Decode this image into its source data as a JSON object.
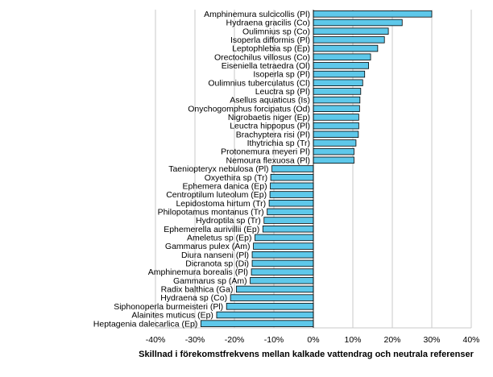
{
  "chart_data": {
    "type": "bar",
    "orientation": "horizontal",
    "xlabel": "Skillnad i förekomstfrekvens mellan kalkade vattendrag och neutrala referenser",
    "xlim": [
      -0.4,
      0.4
    ],
    "xticks": [
      -0.4,
      -0.3,
      -0.2,
      -0.1,
      0,
      0.1,
      0.2,
      0.3,
      0.4
    ],
    "xtick_labels": [
      "-40%",
      "-30%",
      "-20%",
      "-10%",
      "0%",
      "10%",
      "20%",
      "30%",
      "40%"
    ],
    "grid": "vertical gridlines",
    "bar_color": "#5ec8ea",
    "bar_edge_color": "#000000",
    "categories": [
      "Amphinemura sulcicollis (Pl)",
      "Hydraena gracilis (Co)",
      "Oulimnius sp (Co)",
      "Isoperla difformis (Pl)",
      "Leptophlebia sp (Ep)",
      "Orectochilus villosus (Co)",
      "Eiseniella tetraedra (Ol)",
      "Isoperla sp (Pl)",
      "Oulimnius tuberculatus (Cl)",
      "Leuctra sp (Pl)",
      "Asellus aquaticus (Is)",
      "Onychogomphus forcipatus (Od)",
      "Nigrobaetis niger (Ep)",
      "Leuctra hippopus (Pl)",
      "Brachyptera risi (Pl)",
      "Ithytrichia sp (Tr)",
      "Protonemura meyeri Pl)",
      "Nemoura flexuosa (Pl)",
      "Taeniopteryx nebulosa (Pl)",
      "Oxyethira sp (Tr)",
      "Ephemera danica (Ep)",
      "Centroptilum luteolum (Ep)",
      "Lepidostoma hirtum (Tr)",
      "Philopotamus montanus (Tr)",
      "Hydroptila sp (Tr)",
      "Ephemerella aurivillii (Ep)",
      "Ameletus sp (Ep)",
      "Gammarus pulex (Am)",
      "Diura nanseni (Pl)",
      "Dicranota sp (Di)",
      "Amphinemura borealis (Pl)",
      "Gammarus sp (Am)",
      "Radix balthica (Ga)",
      "Hydraena sp (Co)",
      "Siphonoperla burmeisteri (Pl)",
      "Alainites muticus (Ep)",
      "Heptagenia dalecarlica (Ep)"
    ],
    "values": [
      0.3,
      0.225,
      0.19,
      0.18,
      0.163,
      0.145,
      0.14,
      0.13,
      0.125,
      0.12,
      0.118,
      0.117,
      0.115,
      0.115,
      0.114,
      0.108,
      0.103,
      0.103,
      -0.105,
      -0.108,
      -0.109,
      -0.11,
      -0.112,
      -0.117,
      -0.125,
      -0.128,
      -0.148,
      -0.152,
      -0.155,
      -0.155,
      -0.157,
      -0.16,
      -0.195,
      -0.21,
      -0.22,
      -0.245,
      -0.285
    ]
  }
}
